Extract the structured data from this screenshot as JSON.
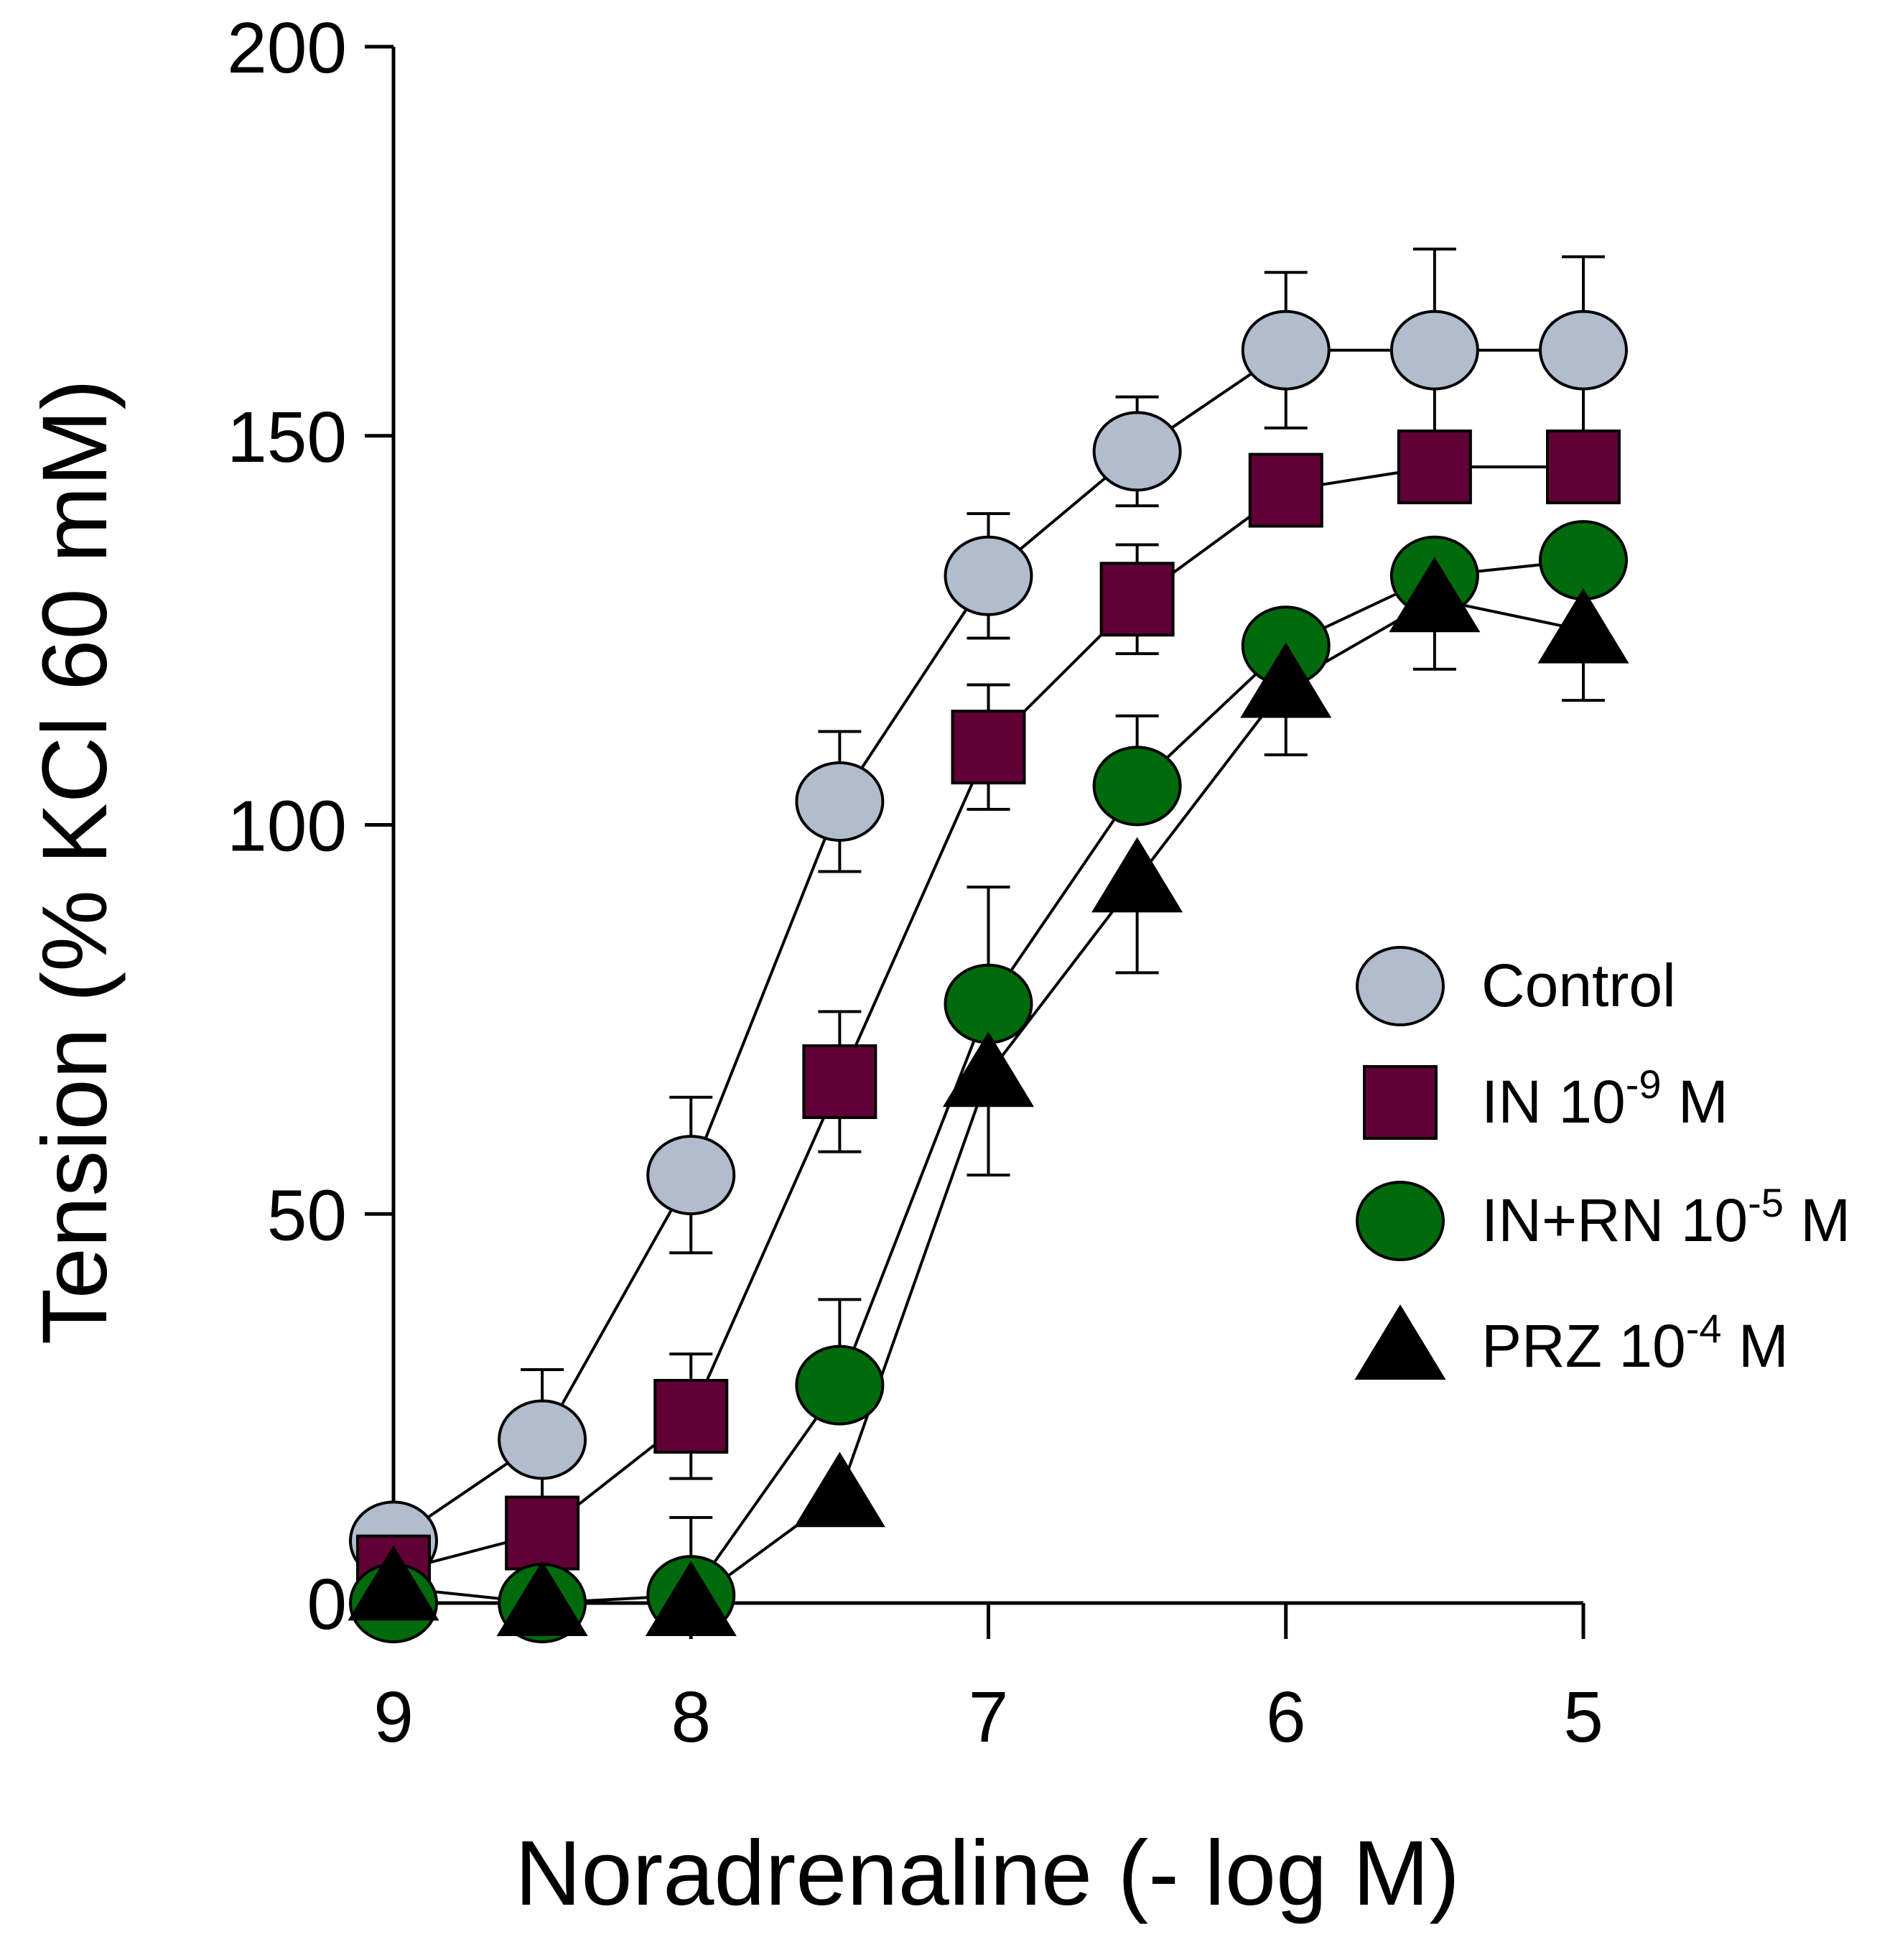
{
  "chart_data": {
    "type": "line",
    "title": "",
    "xlabel": "Noradrenaline (- log M)",
    "ylabel": "Tension (% KCl 60 mM)",
    "x": [
      9,
      8.5,
      8,
      7.5,
      7,
      6.5,
      6,
      5.5,
      5
    ],
    "xlim": [
      9,
      5
    ],
    "ylim": [
      0,
      200
    ],
    "x_ticks": [
      9,
      8,
      7,
      6,
      5
    ],
    "y_ticks": [
      0,
      50,
      100,
      150,
      200
    ],
    "legend_position": "right",
    "series": [
      {
        "name": "Control",
        "legend_base": "Control",
        "legend_exp": "",
        "legend_unit": "",
        "marker": "circle",
        "color": "#b1bccd",
        "values": [
          8,
          21,
          55,
          103,
          132,
          148,
          161,
          161,
          161
        ],
        "error": [
          0,
          9,
          10,
          9,
          8,
          7,
          10,
          13,
          12
        ],
        "error_dir": "both"
      },
      {
        "name": "IN 10-9 M",
        "legend_base": "IN 10",
        "legend_exp": "-9",
        "legend_unit": " M",
        "marker": "square",
        "color": "#600036",
        "values": [
          4,
          9,
          24,
          67,
          110,
          129,
          143,
          146,
          146
        ],
        "error": [
          0,
          0,
          8,
          9,
          8,
          7,
          0,
          0,
          0
        ],
        "error_dir": "both"
      },
      {
        "name": "IN+RN 10-5 M",
        "legend_base": "IN+RN 10",
        "legend_exp": "-5",
        "legend_unit": " M",
        "marker": "circle",
        "color": "#006a0c",
        "values": [
          0,
          0,
          1,
          28,
          77,
          105,
          123,
          132,
          134
        ],
        "error": [
          0,
          0,
          10,
          11,
          15,
          9,
          0,
          0,
          0
        ],
        "error_dir": "up"
      },
      {
        "name": "PRZ 10-4 M",
        "legend_base": "PRZ 10",
        "legend_exp": "-4",
        "legend_unit": " M",
        "marker": "triangle",
        "color": "#000000",
        "values": [
          2,
          0,
          0,
          14,
          68,
          93,
          118,
          129,
          125
        ],
        "error": [
          0,
          0,
          0,
          0,
          13,
          12,
          9,
          9,
          9
        ],
        "error_dir": "down"
      }
    ]
  }
}
